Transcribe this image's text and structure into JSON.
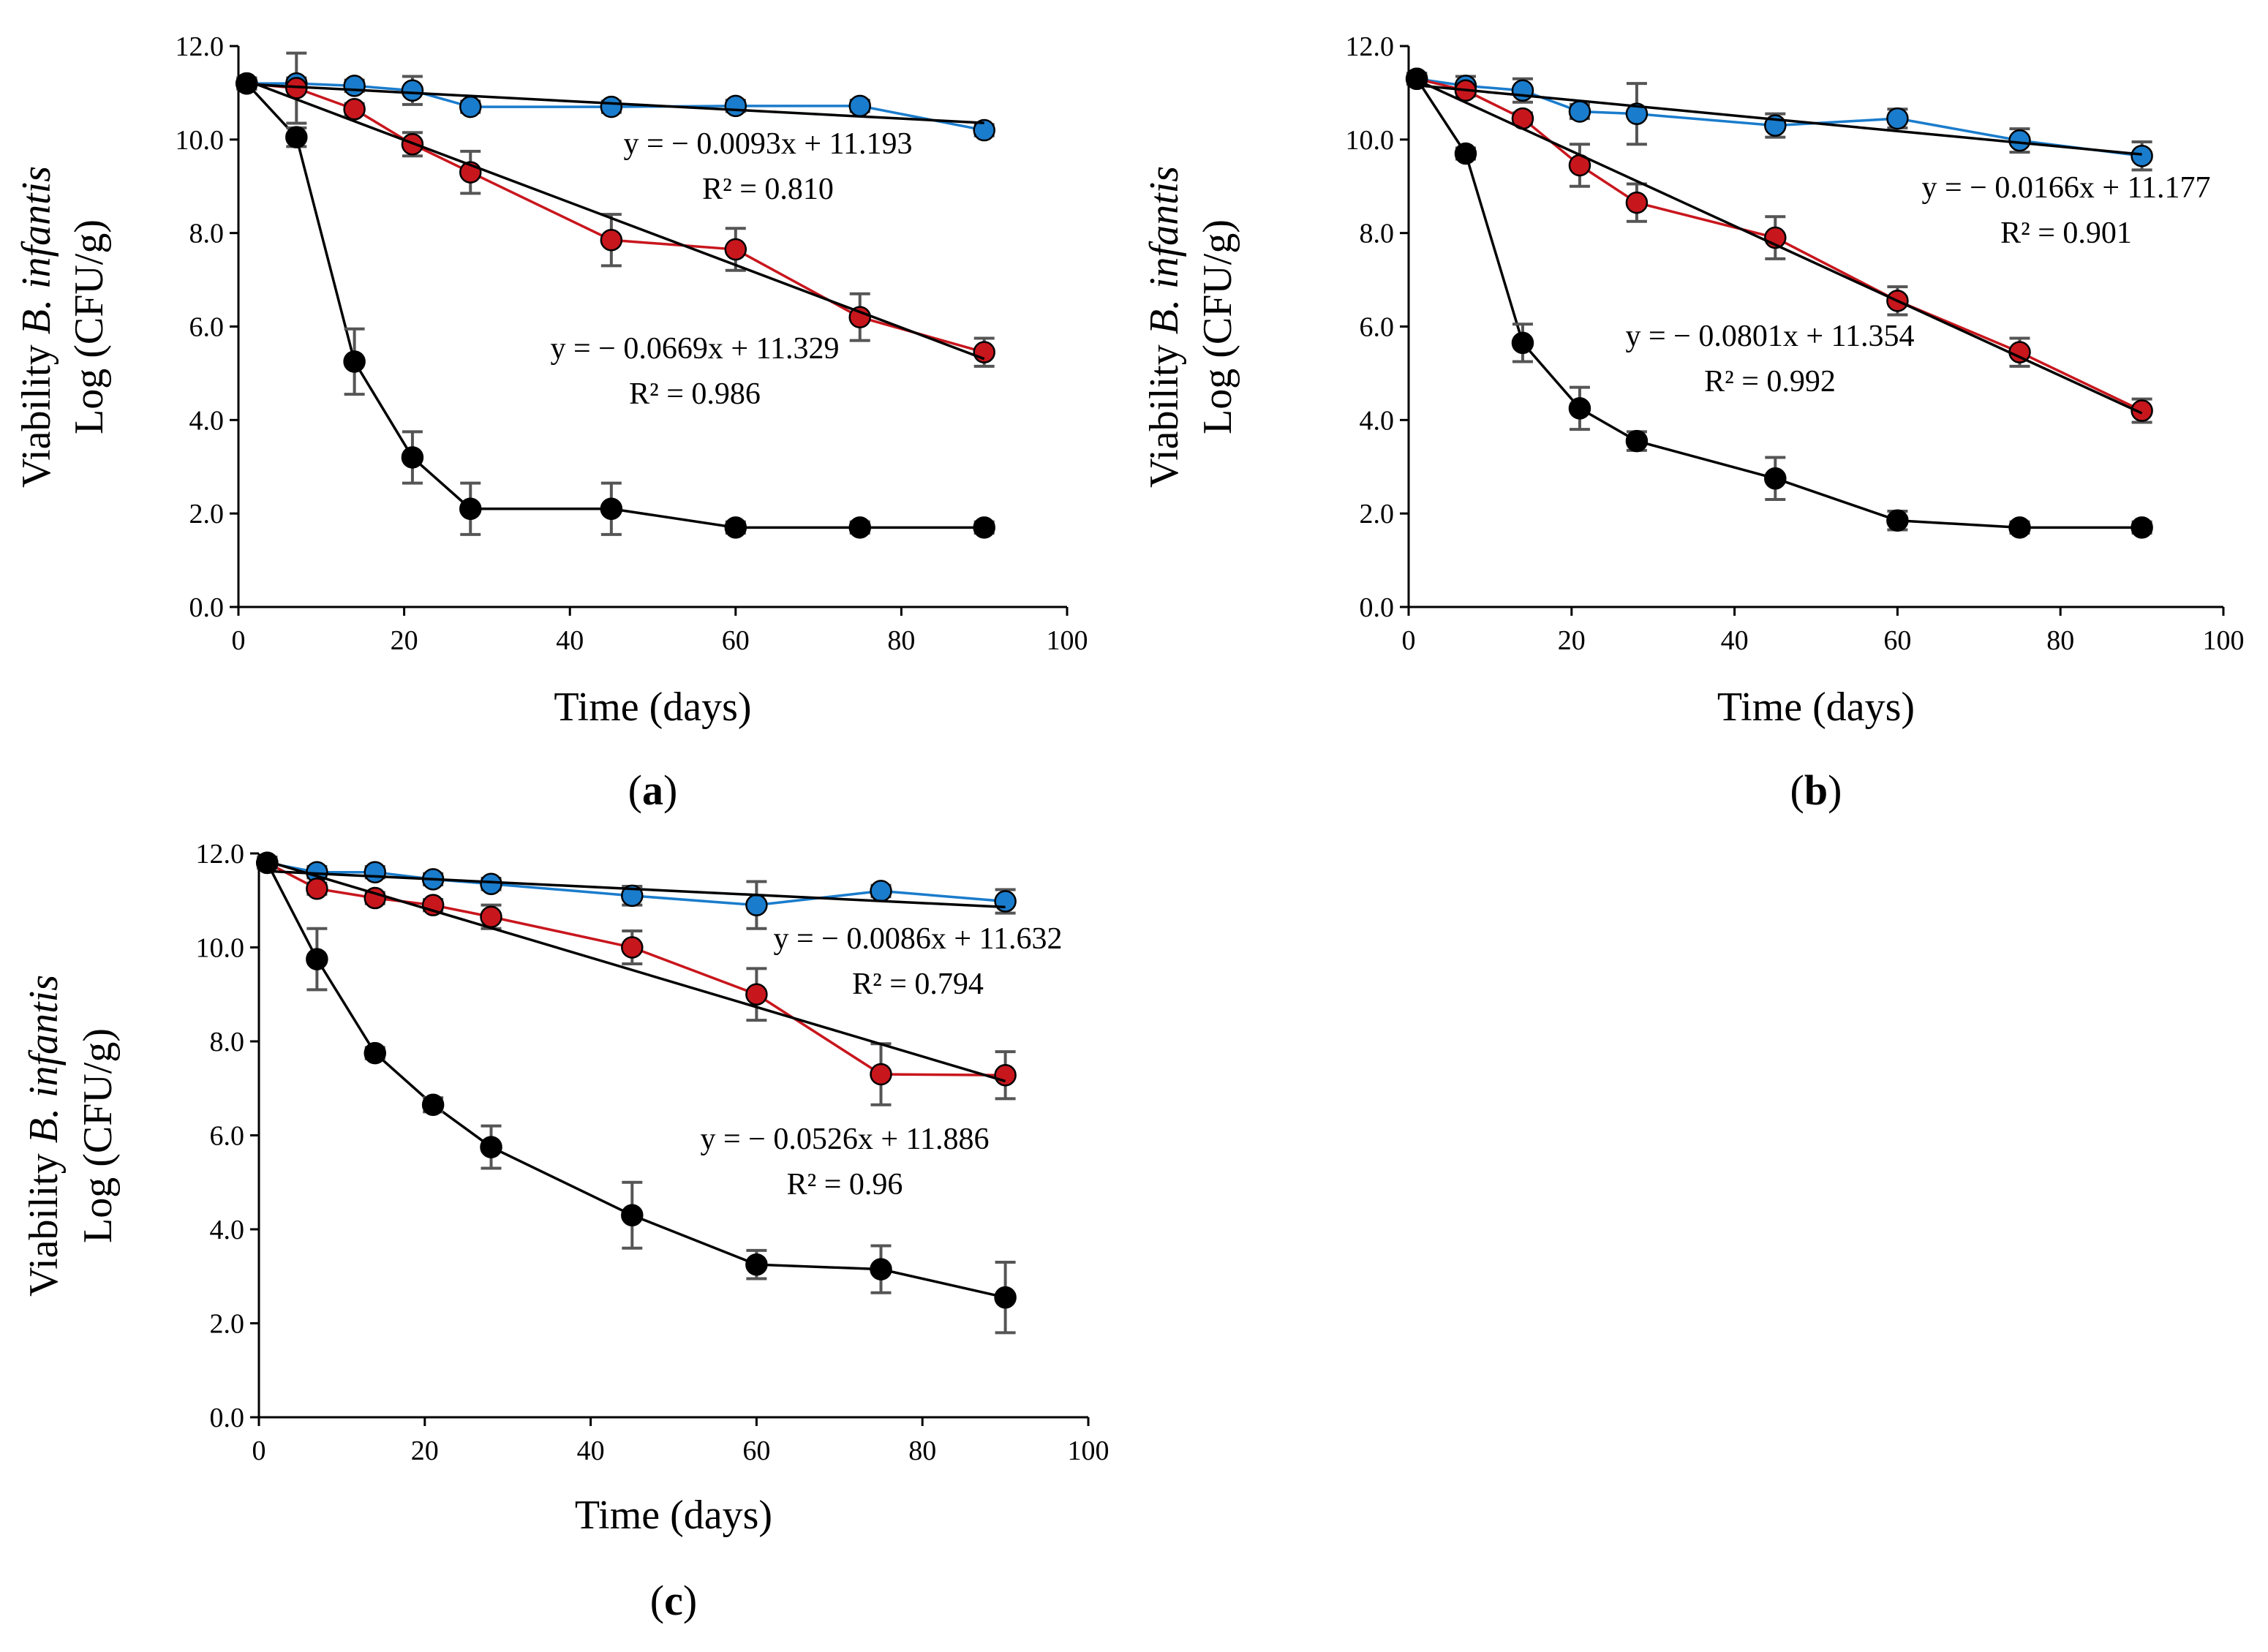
{
  "figure": {
    "ylabel_prefix": "Viability ",
    "ylabel_species": "B. infantis",
    "ylabel_line2": "Log (CFU/g)",
    "colors": {
      "blue": "#1a7ccc",
      "red": "#c8161d",
      "black": "#000000",
      "fit": "#000000",
      "errorbar": "#555555",
      "axis": "#000000"
    }
  },
  "chart_data": [
    {
      "type": "line",
      "panel_label": "(a)",
      "panel_letter": "a",
      "xlabel": "Time (days)",
      "ylabel": "Viability B. infantis Log (CFU/g)",
      "xlim": [
        0,
        100
      ],
      "ylim": [
        0,
        12
      ],
      "x_ticks": [
        "0",
        "20",
        "40",
        "60",
        "80",
        "100"
      ],
      "y_ticks": [
        "0.0",
        "2.0",
        "4.0",
        "6.0",
        "8.0",
        "10.0",
        "12.0"
      ],
      "series": [
        {
          "name": "blue",
          "x": [
            1,
            7,
            14,
            21,
            28,
            45,
            60,
            75,
            90
          ],
          "y": [
            11.2,
            11.2,
            11.15,
            11.05,
            10.7,
            10.7,
            10.72,
            10.72,
            10.2
          ],
          "err": [
            0.12,
            0.12,
            0.12,
            0.3,
            0.12,
            0.12,
            0.12,
            0.12,
            0.12
          ]
        },
        {
          "name": "red",
          "x": [
            1,
            7,
            14,
            21,
            28,
            45,
            60,
            75,
            90
          ],
          "y": [
            11.2,
            11.1,
            10.65,
            9.9,
            9.3,
            7.85,
            7.65,
            6.2,
            5.45
          ],
          "err": [
            0.12,
            0.75,
            0.12,
            0.25,
            0.45,
            0.55,
            0.45,
            0.5,
            0.3
          ]
        },
        {
          "name": "black",
          "x": [
            1,
            7,
            14,
            21,
            28,
            45,
            60,
            75,
            90
          ],
          "y": [
            11.2,
            10.05,
            5.25,
            3.2,
            2.1,
            2.1,
            1.7,
            1.7,
            1.7
          ],
          "err": [
            0.12,
            0.2,
            0.7,
            0.55,
            0.55,
            0.55,
            0.12,
            0.12,
            0.12
          ]
        }
      ],
      "fits": [
        {
          "slope": -0.0093,
          "intercept": 11.193,
          "x0": 1,
          "x1": 90,
          "equation": "y = − 0.0093x + 11.193",
          "r2": "R² = 0.810"
        },
        {
          "slope": -0.0669,
          "intercept": 11.329,
          "x0": 1,
          "x1": 90,
          "equation": "y = − 0.0669x + 11.329",
          "r2": "R² = 0.986"
        }
      ]
    },
    {
      "type": "line",
      "panel_label": "(b)",
      "panel_letter": "b",
      "xlabel": "Time (days)",
      "ylabel": "Viability B. infantis Log (CFU/g)",
      "xlim": [
        0,
        100
      ],
      "ylim": [
        0,
        12
      ],
      "x_ticks": [
        "0",
        "20",
        "40",
        "60",
        "80",
        "100"
      ],
      "y_ticks": [
        "0.0",
        "2.0",
        "4.0",
        "6.0",
        "8.0",
        "10.0",
        "12.0"
      ],
      "series": [
        {
          "name": "blue",
          "x": [
            1,
            7,
            14,
            21,
            28,
            45,
            60,
            75,
            90
          ],
          "y": [
            11.3,
            11.15,
            11.05,
            10.6,
            10.55,
            10.3,
            10.45,
            9.98,
            9.65
          ],
          "err": [
            0.12,
            0.2,
            0.25,
            0.15,
            0.65,
            0.25,
            0.2,
            0.25,
            0.3
          ]
        },
        {
          "name": "red",
          "x": [
            1,
            7,
            14,
            21,
            28,
            45,
            60,
            75,
            90
          ],
          "y": [
            11.3,
            11.05,
            10.45,
            9.45,
            8.65,
            7.9,
            6.55,
            5.45,
            4.2
          ],
          "err": [
            0.12,
            0.12,
            0.12,
            0.45,
            0.4,
            0.45,
            0.3,
            0.3,
            0.25
          ]
        },
        {
          "name": "black",
          "x": [
            1,
            7,
            14,
            21,
            28,
            45,
            60,
            75,
            90
          ],
          "y": [
            11.3,
            9.7,
            5.65,
            4.25,
            3.55,
            2.75,
            1.85,
            1.7,
            1.7
          ],
          "err": [
            0.12,
            0.12,
            0.4,
            0.45,
            0.2,
            0.45,
            0.2,
            0.12,
            0.12
          ]
        }
      ],
      "fits": [
        {
          "slope": -0.0166,
          "intercept": 11.177,
          "x0": 1,
          "x1": 90,
          "equation": "y = − 0.0166x + 11.177",
          "r2": "R² = 0.901"
        },
        {
          "slope": -0.0801,
          "intercept": 11.354,
          "x0": 1,
          "x1": 90,
          "equation": "y = − 0.0801x + 11.354",
          "r2": "R² = 0.992"
        }
      ]
    },
    {
      "type": "line",
      "panel_label": "(c)",
      "panel_letter": "c",
      "xlabel": "Time (days)",
      "ylabel": "Viability B. infantis Log (CFU/g)",
      "xlim": [
        0,
        100
      ],
      "ylim": [
        0,
        12
      ],
      "x_ticks": [
        "0",
        "20",
        "40",
        "60",
        "80",
        "100"
      ],
      "y_ticks": [
        "0.0",
        "2.0",
        "4.0",
        "6.0",
        "8.0",
        "10.0",
        "12.0"
      ],
      "series": [
        {
          "name": "blue",
          "x": [
            1,
            7,
            14,
            21,
            28,
            45,
            60,
            75,
            90
          ],
          "y": [
            11.8,
            11.6,
            11.6,
            11.45,
            11.35,
            11.1,
            10.9,
            11.2,
            10.98
          ],
          "err": [
            0.12,
            0.12,
            0.12,
            0.12,
            0.12,
            0.2,
            0.5,
            0.12,
            0.25
          ]
        },
        {
          "name": "red",
          "x": [
            1,
            7,
            14,
            21,
            28,
            45,
            60,
            75,
            90
          ],
          "y": [
            11.8,
            11.25,
            11.05,
            10.9,
            10.65,
            10.0,
            9.0,
            7.3,
            7.28
          ],
          "err": [
            0.12,
            0.12,
            0.12,
            0.12,
            0.25,
            0.35,
            0.55,
            0.65,
            0.5
          ]
        },
        {
          "name": "black",
          "x": [
            1,
            7,
            14,
            21,
            28,
            45,
            60,
            75,
            90
          ],
          "y": [
            11.8,
            9.75,
            7.75,
            6.65,
            5.75,
            4.3,
            3.25,
            3.15,
            2.55
          ],
          "err": [
            0.12,
            0.65,
            0.12,
            0.15,
            0.45,
            0.7,
            0.3,
            0.5,
            0.75
          ]
        }
      ],
      "fits": [
        {
          "slope": -0.0086,
          "intercept": 11.632,
          "x0": 1,
          "x1": 90,
          "equation": "y = − 0.0086x + 11.632",
          "r2": "R² = 0.794"
        },
        {
          "slope": -0.0526,
          "intercept": 11.886,
          "x0": 1,
          "x1": 90,
          "equation": "y = − 0.0526x + 11.886",
          "r2": "R² = 0.96"
        }
      ]
    }
  ]
}
